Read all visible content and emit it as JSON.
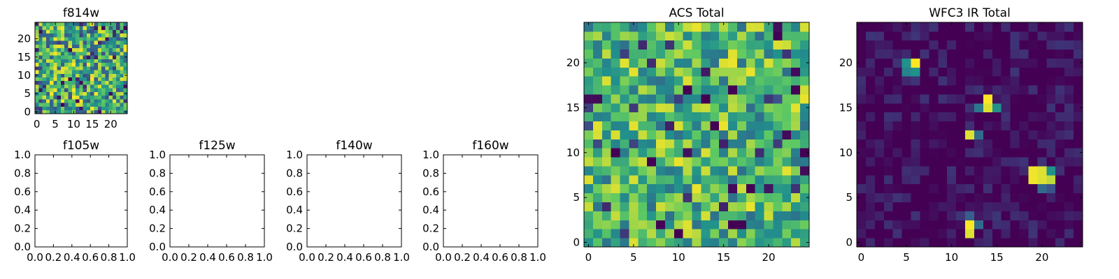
{
  "chart_data": [
    {
      "id": "f814w",
      "type": "heatmap",
      "title": "f814w",
      "colormap": "viridis",
      "grid_size": 25,
      "seed": 11,
      "clim": [
        0,
        1
      ],
      "noise": {
        "base": 0.62,
        "amp": 0.38,
        "dark_fraction": 0.08
      },
      "xticks": [
        0,
        5,
        10,
        15,
        20
      ],
      "yticks": [
        0,
        5,
        10,
        15,
        20
      ],
      "xlim": [
        -0.5,
        24.5
      ],
      "ylim": [
        -0.5,
        24.5
      ]
    },
    {
      "id": "f105w",
      "type": "empty",
      "title": "f105w",
      "xlim": [
        0,
        1
      ],
      "ylim": [
        0,
        1
      ],
      "xticks": [
        0.0,
        0.2,
        0.4,
        0.6,
        0.8,
        1.0
      ],
      "yticks": [
        0.0,
        0.2,
        0.4,
        0.6,
        0.8,
        1.0
      ]
    },
    {
      "id": "f125w",
      "type": "empty",
      "title": "f125w",
      "xlim": [
        0,
        1
      ],
      "ylim": [
        0,
        1
      ],
      "xticks": [
        0.0,
        0.2,
        0.4,
        0.6,
        0.8,
        1.0
      ],
      "yticks": [
        0.0,
        0.2,
        0.4,
        0.6,
        0.8,
        1.0
      ]
    },
    {
      "id": "f140w",
      "type": "empty",
      "title": "f140w",
      "xlim": [
        0,
        1
      ],
      "ylim": [
        0,
        1
      ],
      "xticks": [
        0.0,
        0.2,
        0.4,
        0.6,
        0.8,
        1.0
      ],
      "yticks": [
        0.0,
        0.2,
        0.4,
        0.6,
        0.8,
        1.0
      ]
    },
    {
      "id": "f160w",
      "type": "empty",
      "title": "f160w",
      "xlim": [
        0,
        1
      ],
      "ylim": [
        0,
        1
      ],
      "xticks": [
        0.0,
        0.2,
        0.4,
        0.6,
        0.8,
        1.0
      ],
      "yticks": [
        0.0,
        0.2,
        0.4,
        0.6,
        0.8,
        1.0
      ]
    },
    {
      "id": "acs_total",
      "type": "heatmap",
      "title": "ACS Total",
      "colormap": "viridis",
      "grid_size": 25,
      "seed": 7,
      "clim": [
        0,
        1
      ],
      "noise": {
        "base": 0.66,
        "amp": 0.3,
        "dark_fraction": 0.05
      },
      "hot_cells": [
        [
          12,
          24
        ],
        [
          18,
          19
        ],
        [
          16,
          20
        ],
        [
          10,
          9
        ],
        [
          12,
          6
        ],
        [
          18,
          4
        ],
        [
          24,
          16
        ],
        [
          15,
          13
        ]
      ],
      "dark_cells": [
        [
          21,
          23
        ],
        [
          11,
          17
        ],
        [
          13,
          16
        ],
        [
          3,
          10
        ],
        [
          14,
          13
        ],
        [
          7,
          9
        ],
        [
          10,
          1
        ],
        [
          16,
          2
        ],
        [
          8,
          2
        ],
        [
          24,
          10
        ],
        [
          18,
          6
        ]
      ],
      "xticks": [
        0,
        5,
        10,
        15,
        20
      ],
      "yticks": [
        0,
        5,
        10,
        15,
        20
      ],
      "xlim": [
        -0.5,
        24.5
      ],
      "ylim": [
        -0.5,
        24.5
      ]
    },
    {
      "id": "wfc3_ir_total",
      "type": "heatmap",
      "title": "WFC3 IR Total",
      "colormap": "viridis",
      "grid_size": 25,
      "seed": 3,
      "clim": [
        0,
        1
      ],
      "noise": {
        "base": 0.02,
        "amp": 0.14,
        "dark_fraction": 0
      },
      "sources": [
        {
          "x": 6,
          "y": 20,
          "v": 1.0
        },
        {
          "x": 5,
          "y": 20,
          "v": 0.5
        },
        {
          "x": 5,
          "y": 19,
          "v": 0.45
        },
        {
          "x": 6,
          "y": 19,
          "v": 0.5
        },
        {
          "x": 14,
          "y": 16,
          "v": 1.0
        },
        {
          "x": 14,
          "y": 15,
          "v": 0.95
        },
        {
          "x": 13,
          "y": 15,
          "v": 0.4
        },
        {
          "x": 15,
          "y": 15,
          "v": 0.5
        },
        {
          "x": 12,
          "y": 12,
          "v": 0.95
        },
        {
          "x": 13,
          "y": 12,
          "v": 0.35
        },
        {
          "x": 19,
          "y": 8,
          "v": 0.98
        },
        {
          "x": 20,
          "y": 8,
          "v": 0.95
        },
        {
          "x": 21,
          "y": 8,
          "v": 0.5
        },
        {
          "x": 19,
          "y": 7,
          "v": 0.98
        },
        {
          "x": 20,
          "y": 7,
          "v": 0.95
        },
        {
          "x": 21,
          "y": 7,
          "v": 0.9
        },
        {
          "x": 20,
          "y": 6,
          "v": 0.35
        },
        {
          "x": 21,
          "y": 6,
          "v": 0.25
        },
        {
          "x": 12,
          "y": 2,
          "v": 1.0
        },
        {
          "x": 12,
          "y": 1,
          "v": 0.95
        },
        {
          "x": 13,
          "y": 2,
          "v": 0.35
        },
        {
          "x": 12,
          "y": 3,
          "v": 0.3
        }
      ],
      "xticks": [
        0,
        5,
        10,
        15,
        20
      ],
      "yticks": [
        0,
        5,
        10,
        15,
        20
      ],
      "xlim": [
        -0.5,
        24.5
      ],
      "ylim": [
        -0.5,
        24.5
      ]
    }
  ],
  "colors": {
    "axes": "#000000",
    "viridis": [
      "#440154",
      "#3b528b",
      "#21918c",
      "#5ec962",
      "#fde725"
    ]
  }
}
